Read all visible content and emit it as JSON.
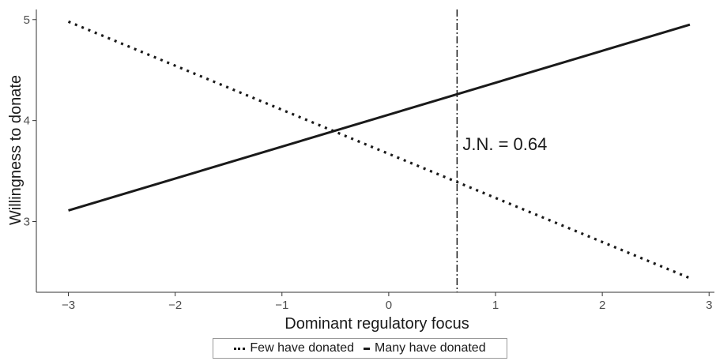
{
  "chart_data": {
    "type": "line",
    "xlabel": "Dominant regulatory focus",
    "ylabel": "Willingness to donate",
    "xlim": [
      -3.3,
      3.05
    ],
    "ylim": [
      2.3,
      5.1
    ],
    "xticks": [
      -3,
      -2,
      -1,
      0,
      1,
      2,
      3
    ],
    "yticks": [
      3,
      4,
      5
    ],
    "grid": false,
    "legend_position": "bottom",
    "series": [
      {
        "name": "Few have donated",
        "style": "dotted",
        "x": [
          -3,
          2.82
        ],
        "y": [
          4.98,
          2.44
        ]
      },
      {
        "name": "Many have donated",
        "style": "solid",
        "x": [
          -3,
          2.82
        ],
        "y": [
          3.11,
          4.95
        ]
      }
    ],
    "vline": {
      "x": 0.64,
      "style": "dashdot"
    },
    "annotation": {
      "text": "J.N. = 0.64",
      "x": 0.64,
      "y": 3.77
    }
  },
  "colors": {
    "line": "#1a1a1a",
    "axis": "#333333",
    "tick_text": "#4d4d4d"
  }
}
